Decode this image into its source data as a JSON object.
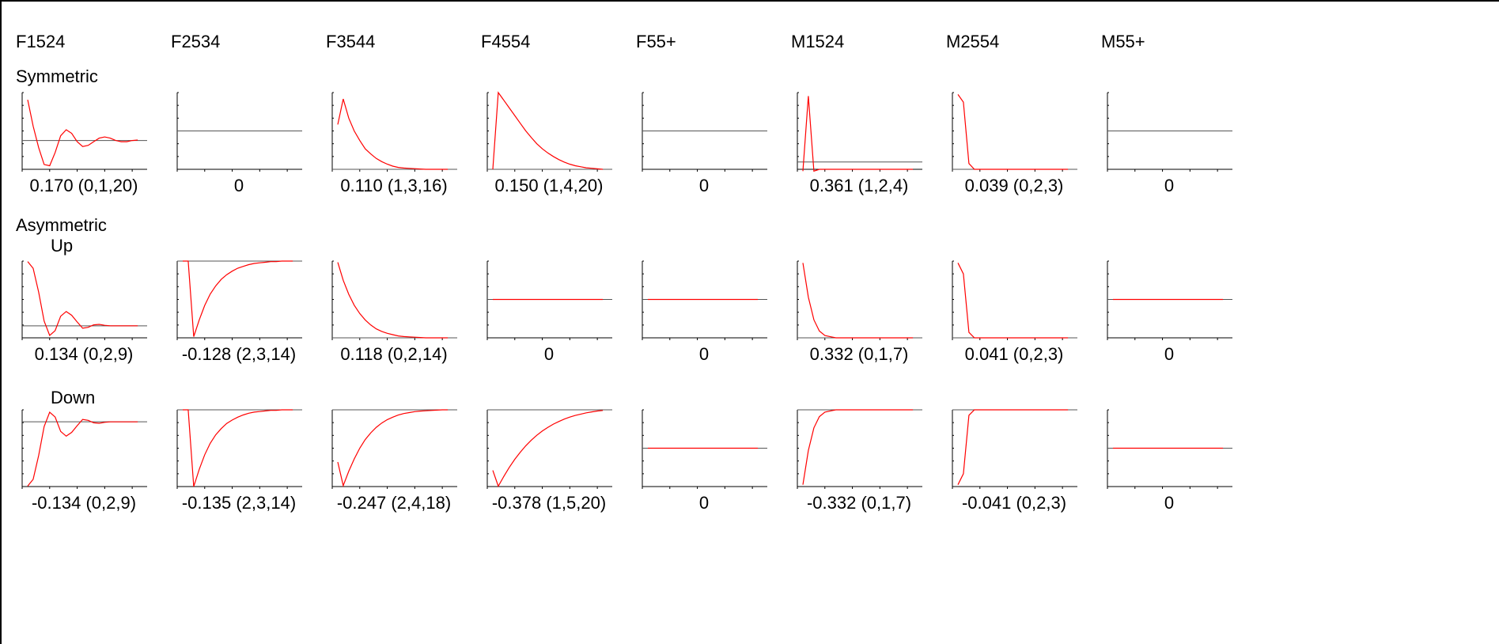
{
  "columns": [
    "F1524",
    "F2534",
    "F3544",
    "F4554",
    "F55+",
    "M1524",
    "M2554",
    "M55+"
  ],
  "row_labels": {
    "symmetric": "Symmetric",
    "asymmetric": "Asymmetric",
    "up": "Up",
    "down": "Down"
  },
  "colors": {
    "line": "#ff0000",
    "baseline": "#000000",
    "frame": "#000000"
  },
  "chart_data": [
    {
      "type": "line",
      "row": "Symmetric",
      "col": "F1524",
      "caption": "0.170 (0,1,20)",
      "x": [
        1,
        2,
        3,
        4,
        5,
        6,
        7,
        8,
        9,
        10,
        11,
        12,
        13,
        14,
        15,
        16,
        17,
        18,
        19,
        20,
        21
      ],
      "values": [
        0.17,
        0.06,
        -0.03,
        -0.1,
        -0.105,
        -0.05,
        0.02,
        0.045,
        0.03,
        -0.005,
        -0.025,
        -0.02,
        -0.005,
        0.01,
        0.015,
        0.01,
        0.0,
        -0.005,
        -0.005,
        0.0,
        0.002
      ],
      "ylim": [
        -0.12,
        0.2
      ],
      "xlim": [
        0,
        23
      ]
    },
    {
      "type": "line",
      "row": "Symmetric",
      "col": "F2534",
      "caption": "0",
      "x": [],
      "values": [],
      "ylim": [
        -0.1,
        0.1
      ],
      "xlim": [
        0,
        23
      ]
    },
    {
      "type": "line",
      "row": "Symmetric",
      "col": "F3544",
      "caption": "0.110 (1,3,16)",
      "x": [
        1,
        2,
        3,
        4,
        5,
        6,
        7,
        8,
        9,
        10,
        11,
        12,
        13,
        14,
        15,
        16,
        17,
        18,
        19,
        20,
        21
      ],
      "values": [
        0.07,
        0.11,
        0.08,
        0.06,
        0.045,
        0.032,
        0.024,
        0.017,
        0.012,
        0.008,
        0.005,
        0.003,
        0.002,
        0.0015,
        0.001,
        0.0005,
        0.0,
        0.0,
        0.0,
        0.0,
        0.0
      ],
      "ylim": [
        0,
        0.12
      ],
      "xlim": [
        0,
        23
      ]
    },
    {
      "type": "line",
      "row": "Symmetric",
      "col": "F4554",
      "caption": "0.150 (1,4,20)",
      "x": [
        1,
        2,
        3,
        4,
        5,
        6,
        7,
        8,
        9,
        10,
        11,
        12,
        13,
        14,
        15,
        16,
        17,
        18,
        19,
        20,
        21
      ],
      "values": [
        0.0,
        0.15,
        0.135,
        0.12,
        0.105,
        0.09,
        0.075,
        0.062,
        0.05,
        0.04,
        0.032,
        0.025,
        0.019,
        0.014,
        0.01,
        0.007,
        0.005,
        0.003,
        0.002,
        0.001,
        0.0
      ],
      "ylim": [
        0,
        0.15
      ],
      "xlim": [
        0,
        23
      ]
    },
    {
      "type": "line",
      "row": "Symmetric",
      "col": "F55+",
      "caption": "0",
      "x": [],
      "values": [],
      "ylim": [
        -0.1,
        0.1
      ],
      "xlim": [
        0,
        23
      ]
    },
    {
      "type": "line",
      "row": "Symmetric",
      "col": "M1524",
      "caption": "0.361 (1,2,4)",
      "x": [
        1,
        2,
        3,
        4,
        5,
        6,
        7,
        8,
        9,
        10,
        11,
        12,
        13,
        14,
        15,
        16,
        17,
        18,
        19,
        20,
        21
      ],
      "values": [
        -0.05,
        0.361,
        -0.05,
        -0.04,
        -0.04,
        -0.04,
        -0.04,
        -0.04,
        -0.04,
        -0.04,
        -0.04,
        -0.04,
        -0.04,
        -0.04,
        -0.04,
        -0.04,
        -0.04,
        -0.04,
        -0.04,
        -0.04,
        -0.04
      ],
      "ylim": [
        -0.04,
        0.38
      ],
      "xlim": [
        0,
        23
      ]
    },
    {
      "type": "line",
      "row": "Symmetric",
      "col": "M2554",
      "caption": "0.039 (0,2,3)",
      "x": [
        1,
        2,
        3,
        4,
        5,
        6,
        7,
        8,
        9,
        10,
        11,
        12,
        13,
        14,
        15,
        16,
        17,
        18,
        19,
        20,
        21
      ],
      "values": [
        0.039,
        0.035,
        0.003,
        0.0,
        0.0,
        0.0,
        0.0,
        0.0,
        0.0,
        0.0,
        0.0,
        0.0,
        0.0,
        0.0,
        0.0,
        0.0,
        0.0,
        0.0,
        0.0,
        0.0,
        0.0
      ],
      "ylim": [
        0,
        0.04
      ],
      "xlim": [
        0,
        23
      ]
    },
    {
      "type": "line",
      "row": "Symmetric",
      "col": "M55+",
      "caption": "0",
      "x": [],
      "values": [],
      "ylim": [
        -0.1,
        0.1
      ],
      "xlim": [
        0,
        23
      ]
    },
    {
      "type": "line",
      "row": "Up",
      "col": "F1524",
      "caption": "0.134 (0,2,9)",
      "x": [
        1,
        2,
        3,
        4,
        5,
        6,
        7,
        8,
        9,
        10,
        11,
        12,
        13,
        14,
        15,
        16,
        17,
        18,
        19,
        20,
        21
      ],
      "values": [
        0.134,
        0.12,
        0.07,
        0.01,
        -0.02,
        -0.01,
        0.02,
        0.03,
        0.022,
        0.008,
        -0.005,
        -0.003,
        0.002,
        0.003,
        0.001,
        0.0,
        0.0,
        0.0,
        0.0,
        0.0,
        0.0
      ],
      "ylim": [
        -0.025,
        0.135
      ],
      "xlim": [
        0,
        23
      ]
    },
    {
      "type": "line",
      "row": "Up",
      "col": "F2534",
      "caption": "-0.128 (2,3,14)",
      "x": [
        1,
        2,
        3,
        4,
        5,
        6,
        7,
        8,
        9,
        10,
        11,
        12,
        13,
        14,
        15,
        16,
        17,
        18,
        19,
        20,
        21
      ],
      "values": [
        0.0,
        0.0,
        -0.128,
        -0.1,
        -0.075,
        -0.056,
        -0.042,
        -0.031,
        -0.023,
        -0.017,
        -0.012,
        -0.009,
        -0.006,
        -0.004,
        -0.003,
        -0.002,
        -0.001,
        -0.001,
        0.0,
        0.0,
        0.0
      ],
      "ylim": [
        -0.13,
        0.0
      ],
      "xlim": [
        0,
        23
      ]
    },
    {
      "type": "line",
      "row": "Up",
      "col": "F3544",
      "caption": "0.118 (0,2,14)",
      "x": [
        1,
        2,
        3,
        4,
        5,
        6,
        7,
        8,
        9,
        10,
        11,
        12,
        13,
        14,
        15,
        16,
        17,
        18,
        19,
        20,
        21
      ],
      "values": [
        0.118,
        0.09,
        0.068,
        0.051,
        0.038,
        0.028,
        0.02,
        0.014,
        0.01,
        0.007,
        0.005,
        0.003,
        0.002,
        0.0015,
        0.001,
        0.0005,
        0.0,
        0.0,
        0.0,
        0.0,
        0.0
      ],
      "ylim": [
        0,
        0.12
      ],
      "xlim": [
        0,
        23
      ]
    },
    {
      "type": "line",
      "row": "Up",
      "col": "F4554",
      "caption": "0",
      "x": [
        1,
        21
      ],
      "values": [
        0,
        0
      ],
      "ylim": [
        -0.1,
        0.1
      ],
      "xlim": [
        0,
        23
      ]
    },
    {
      "type": "line",
      "row": "Up",
      "col": "F55+",
      "caption": "0",
      "x": [
        1,
        21
      ],
      "values": [
        0,
        0
      ],
      "ylim": [
        -0.1,
        0.1
      ],
      "xlim": [
        0,
        23
      ]
    },
    {
      "type": "line",
      "row": "Up",
      "col": "M1524",
      "caption": "0.332 (0,1,7)",
      "x": [
        1,
        2,
        3,
        4,
        5,
        6,
        7,
        8,
        9,
        10,
        11,
        12,
        13,
        14,
        15,
        16,
        17,
        18,
        19,
        20,
        21
      ],
      "values": [
        0.332,
        0.18,
        0.08,
        0.03,
        0.01,
        0.005,
        0.0,
        0.0,
        0.0,
        0.0,
        0.0,
        0.0,
        0.0,
        0.0,
        0.0,
        0.0,
        0.0,
        0.0,
        0.0,
        0.0,
        0.0
      ],
      "ylim": [
        0,
        0.34
      ],
      "xlim": [
        0,
        23
      ]
    },
    {
      "type": "line",
      "row": "Up",
      "col": "M2554",
      "caption": "0.041 (0,2,3)",
      "x": [
        1,
        2,
        3,
        4,
        5,
        6,
        7,
        8,
        9,
        10,
        11,
        12,
        13,
        14,
        15,
        16,
        17,
        18,
        19,
        20,
        21
      ],
      "values": [
        0.041,
        0.035,
        0.003,
        0.0,
        0.0,
        0.0,
        0.0,
        0.0,
        0.0,
        0.0,
        0.0,
        0.0,
        0.0,
        0.0,
        0.0,
        0.0,
        0.0,
        0.0,
        0.0,
        0.0,
        0.0
      ],
      "ylim": [
        0,
        0.042
      ],
      "xlim": [
        0,
        23
      ]
    },
    {
      "type": "line",
      "row": "Up",
      "col": "M55+",
      "caption": "0",
      "x": [
        1,
        21
      ],
      "values": [
        0,
        0
      ],
      "ylim": [
        -0.1,
        0.1
      ],
      "xlim": [
        0,
        23
      ]
    },
    {
      "type": "line",
      "row": "Down",
      "col": "F1524",
      "caption": "-0.134 (0,2,9)",
      "x": [
        1,
        2,
        3,
        4,
        5,
        6,
        7,
        8,
        9,
        10,
        11,
        12,
        13,
        14,
        15,
        16,
        17,
        18,
        19,
        20,
        21
      ],
      "values": [
        -0.134,
        -0.12,
        -0.07,
        -0.01,
        0.02,
        0.01,
        -0.02,
        -0.03,
        -0.022,
        -0.008,
        0.005,
        0.003,
        -0.002,
        -0.003,
        -0.001,
        0.0,
        0.0,
        0.0,
        0.0,
        0.0,
        0.0
      ],
      "ylim": [
        -0.135,
        0.025
      ],
      "xlim": [
        0,
        23
      ]
    },
    {
      "type": "line",
      "row": "Down",
      "col": "F2534",
      "caption": "-0.135 (2,3,14)",
      "x": [
        1,
        2,
        3,
        4,
        5,
        6,
        7,
        8,
        9,
        10,
        11,
        12,
        13,
        14,
        15,
        16,
        17,
        18,
        19,
        20,
        21
      ],
      "values": [
        0.0,
        0.0,
        -0.135,
        -0.105,
        -0.079,
        -0.059,
        -0.044,
        -0.033,
        -0.024,
        -0.018,
        -0.013,
        -0.009,
        -0.006,
        -0.004,
        -0.003,
        -0.002,
        -0.001,
        -0.001,
        0.0,
        0.0,
        0.0
      ],
      "ylim": [
        -0.135,
        0.0
      ],
      "xlim": [
        0,
        23
      ]
    },
    {
      "type": "line",
      "row": "Down",
      "col": "F3544",
      "caption": "-0.247 (2,4,18)",
      "x": [
        1,
        2,
        3,
        4,
        5,
        6,
        7,
        8,
        9,
        10,
        11,
        12,
        13,
        14,
        15,
        16,
        17,
        18,
        19,
        20,
        21
      ],
      "values": [
        -0.17,
        -0.247,
        -0.2,
        -0.16,
        -0.125,
        -0.097,
        -0.075,
        -0.057,
        -0.043,
        -0.032,
        -0.024,
        -0.017,
        -0.012,
        -0.009,
        -0.006,
        -0.004,
        -0.003,
        -0.002,
        -0.001,
        0.0,
        0.0
      ],
      "ylim": [
        -0.25,
        0.0
      ],
      "xlim": [
        0,
        23
      ]
    },
    {
      "type": "line",
      "row": "Down",
      "col": "F4554",
      "caption": "-0.378 (1,5,20)",
      "x": [
        1,
        2,
        3,
        4,
        5,
        6,
        7,
        8,
        9,
        10,
        11,
        12,
        13,
        14,
        15,
        16,
        17,
        18,
        19,
        20,
        21
      ],
      "values": [
        -0.3,
        -0.378,
        -0.33,
        -0.285,
        -0.245,
        -0.21,
        -0.178,
        -0.15,
        -0.126,
        -0.105,
        -0.087,
        -0.071,
        -0.058,
        -0.046,
        -0.036,
        -0.028,
        -0.021,
        -0.015,
        -0.01,
        -0.006,
        -0.003
      ],
      "ylim": [
        -0.38,
        0.0
      ],
      "xlim": [
        0,
        23
      ]
    },
    {
      "type": "line",
      "row": "Down",
      "col": "F55+",
      "caption": "0",
      "x": [
        1,
        21
      ],
      "values": [
        0,
        0
      ],
      "ylim": [
        -0.1,
        0.1
      ],
      "xlim": [
        0,
        23
      ]
    },
    {
      "type": "line",
      "row": "Down",
      "col": "M1524",
      "caption": "-0.332 (0,1,7)",
      "x": [
        1,
        2,
        3,
        4,
        5,
        6,
        7,
        8,
        9,
        10,
        11,
        12,
        13,
        14,
        15,
        16,
        17,
        18,
        19,
        20,
        21
      ],
      "values": [
        -0.332,
        -0.18,
        -0.08,
        -0.03,
        -0.01,
        -0.005,
        0.0,
        0.0,
        0.0,
        0.0,
        0.0,
        0.0,
        0.0,
        0.0,
        0.0,
        0.0,
        0.0,
        0.0,
        0.0,
        0.0,
        0.0
      ],
      "ylim": [
        -0.34,
        0.0
      ],
      "xlim": [
        0,
        23
      ]
    },
    {
      "type": "line",
      "row": "Down",
      "col": "M2554",
      "caption": "-0.041 (0,2,3)",
      "x": [
        1,
        2,
        3,
        4,
        5,
        6,
        7,
        8,
        9,
        10,
        11,
        12,
        13,
        14,
        15,
        16,
        17,
        18,
        19,
        20,
        21
      ],
      "values": [
        -0.041,
        -0.035,
        -0.003,
        0.0,
        0.0,
        0.0,
        0.0,
        0.0,
        0.0,
        0.0,
        0.0,
        0.0,
        0.0,
        0.0,
        0.0,
        0.0,
        0.0,
        0.0,
        0.0,
        0.0,
        0.0
      ],
      "ylim": [
        -0.042,
        0.0
      ],
      "xlim": [
        0,
        23
      ]
    },
    {
      "type": "line",
      "row": "Down",
      "col": "M55+",
      "caption": "0",
      "x": [
        1,
        21
      ],
      "values": [
        0,
        0
      ],
      "ylim": [
        -0.1,
        0.1
      ],
      "xlim": [
        0,
        23
      ]
    }
  ]
}
